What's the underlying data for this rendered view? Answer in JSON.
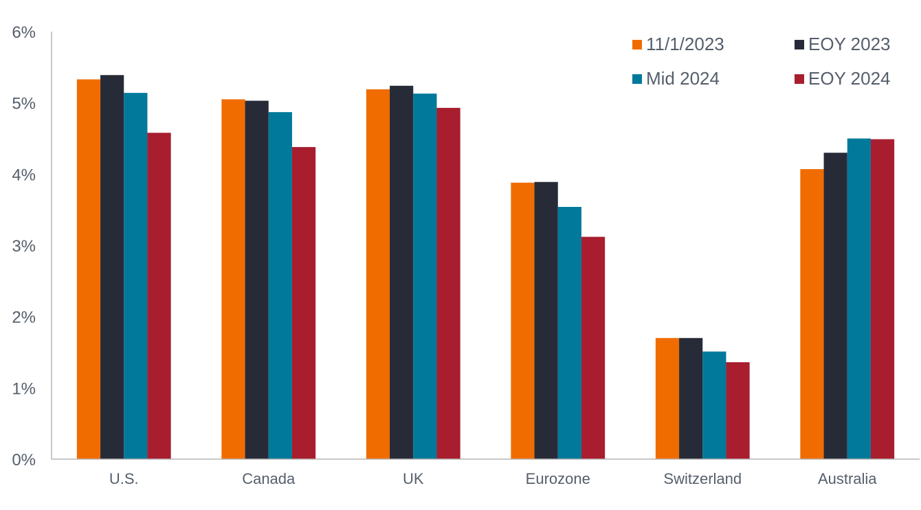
{
  "chart_data": {
    "type": "bar",
    "categories": [
      "U.S.",
      "Canada",
      "UK",
      "Eurozone",
      "Switzerland",
      "Australia"
    ],
    "series": [
      {
        "name": "11/1/2023",
        "color": "#f06c00",
        "values": [
          5.33,
          5.05,
          5.19,
          3.88,
          1.7,
          4.07
        ]
      },
      {
        "name": "EOY 2023",
        "color": "#272b38",
        "values": [
          5.39,
          5.03,
          5.24,
          3.89,
          1.7,
          4.3
        ]
      },
      {
        "name": "Mid 2024",
        "color": "#00799a",
        "values": [
          5.14,
          4.87,
          5.13,
          3.54,
          1.51,
          4.5
        ]
      },
      {
        "name": "EOY 2024",
        "color": "#a81e2f",
        "values": [
          4.58,
          4.38,
          4.93,
          3.12,
          1.36,
          4.49
        ]
      }
    ],
    "y_ticks": [
      "0%",
      "1%",
      "2%",
      "3%",
      "4%",
      "5%",
      "6%"
    ],
    "ylim": [
      0,
      6
    ],
    "grid": false,
    "legend": "top-right",
    "title": "",
    "xlabel": "",
    "ylabel": ""
  }
}
